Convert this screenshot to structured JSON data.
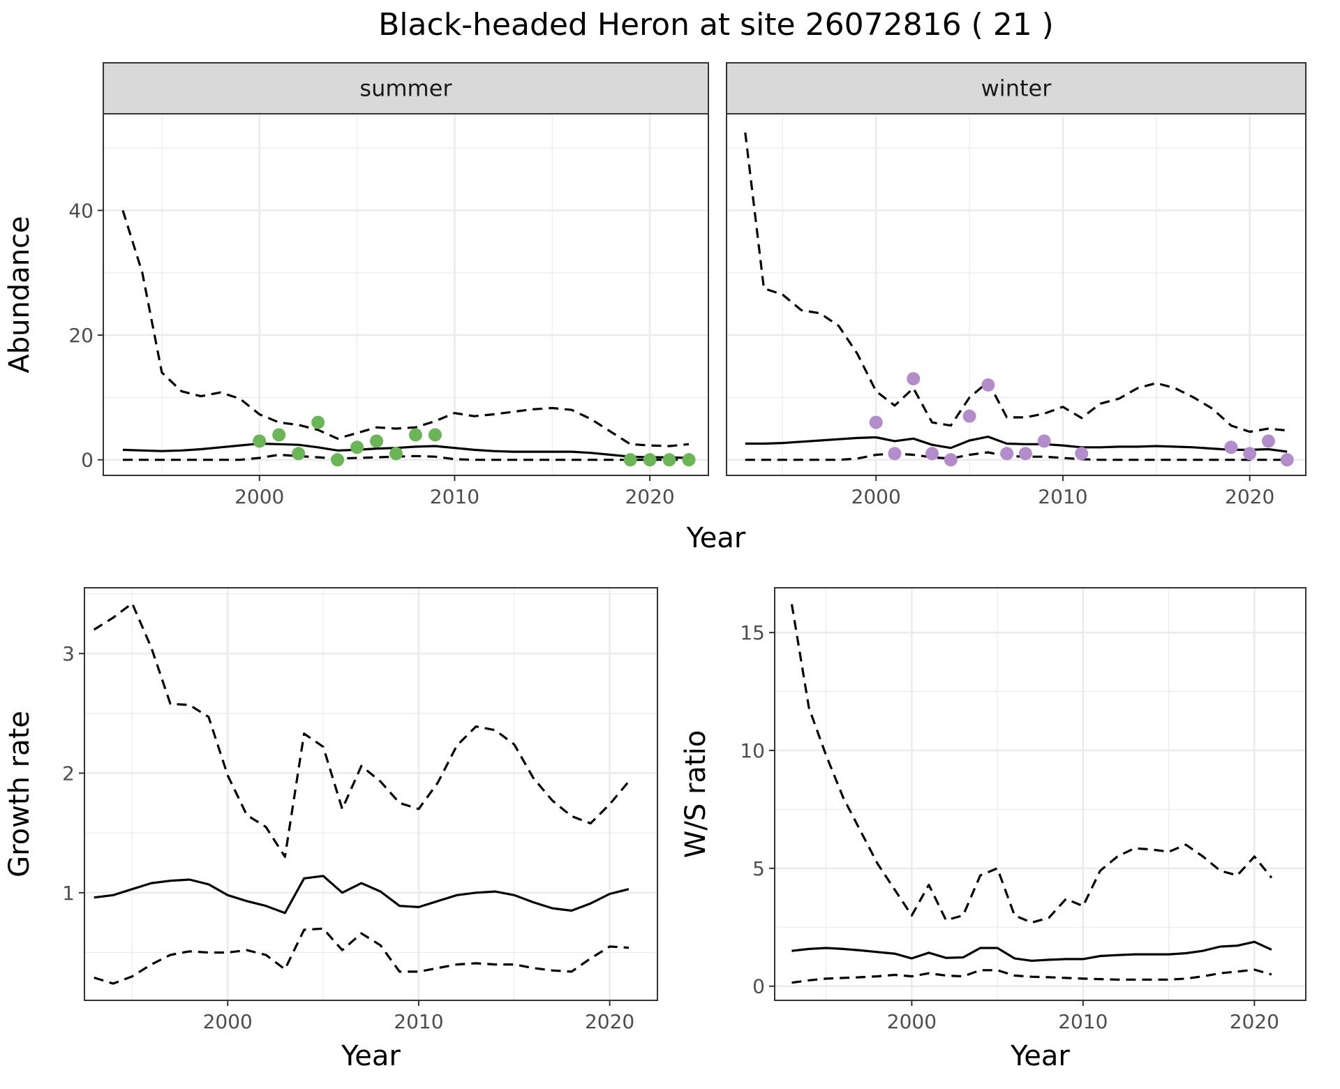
{
  "title": "Black-headed Heron at site 26072816 ( 21 )",
  "chart_data": [
    {
      "type": "line",
      "panel": "summer",
      "strip_label": "summer",
      "xlabel": "Year",
      "ylabel": "Abundance",
      "xlim": [
        1992,
        2023
      ],
      "ylim": [
        -2.5,
        55.5
      ],
      "x_ticks": [
        2000,
        2010,
        2020
      ],
      "y_ticks": [
        0,
        20,
        40
      ],
      "point_color": "#6ab657",
      "series": [
        {
          "style": "dashed",
          "x": [
            1993,
            1994,
            1995,
            1996,
            1997,
            1998,
            1999,
            2000,
            2001,
            2002,
            2003,
            2004,
            2005,
            2006,
            2007,
            2008,
            2009,
            2010,
            2011,
            2012,
            2013,
            2014,
            2015,
            2016,
            2017,
            2018,
            2019,
            2020,
            2021,
            2022
          ],
          "values": [
            40,
            30,
            14,
            11,
            10.2,
            10.8,
            9.8,
            7.3,
            6,
            5.6,
            4.8,
            3.4,
            4.3,
            5.2,
            5,
            5.2,
            6.2,
            7.5,
            7,
            7.3,
            7.7,
            8.1,
            8.3,
            8,
            6.5,
            4.5,
            2.5,
            2.3,
            2.2,
            2.5
          ]
        },
        {
          "style": "solid",
          "x": [
            1993,
            1994,
            1995,
            1996,
            1997,
            1998,
            1999,
            2000,
            2001,
            2002,
            2003,
            2004,
            2005,
            2006,
            2007,
            2008,
            2009,
            2010,
            2011,
            2012,
            2013,
            2014,
            2015,
            2016,
            2017,
            2018,
            2019,
            2020,
            2021,
            2022
          ],
          "values": [
            1.6,
            1.5,
            1.4,
            1.5,
            1.7,
            2,
            2.3,
            2.6,
            2.5,
            2.4,
            2,
            1.5,
            1.6,
            1.8,
            1.9,
            2.1,
            2.2,
            1.9,
            1.6,
            1.4,
            1.3,
            1.3,
            1.3,
            1.3,
            1.1,
            0.8,
            0.5,
            0.4,
            0.4,
            0.3
          ]
        },
        {
          "style": "dashed",
          "x": [
            1993,
            1994,
            1995,
            1996,
            1997,
            1998,
            1999,
            2000,
            2001,
            2002,
            2003,
            2004,
            2005,
            2006,
            2007,
            2008,
            2009,
            2010,
            2011,
            2012,
            2013,
            2014,
            2015,
            2016,
            2017,
            2018,
            2019,
            2020,
            2021,
            2022
          ],
          "values": [
            0,
            0,
            0,
            0,
            0,
            0,
            0,
            0.3,
            0.8,
            0.6,
            0.4,
            0.2,
            0.3,
            0.4,
            0.5,
            0.6,
            0.5,
            0.1,
            0,
            0,
            0,
            0,
            0,
            0,
            0,
            0,
            0,
            0,
            0,
            0
          ]
        }
      ],
      "points": {
        "x": [
          2000,
          2001,
          2002,
          2003,
          2004,
          2005,
          2006,
          2007,
          2008,
          2009,
          2019,
          2020,
          2021,
          2022
        ],
        "values": [
          3,
          4,
          1,
          6,
          0,
          2,
          3,
          1,
          4,
          4,
          0,
          0,
          0,
          0
        ]
      }
    },
    {
      "type": "line",
      "panel": "winter",
      "strip_label": "winter",
      "xlabel": "Year",
      "ylabel": "Abundance",
      "xlim": [
        1992,
        2023
      ],
      "ylim": [
        -2.5,
        55.5
      ],
      "x_ticks": [
        2000,
        2010,
        2020
      ],
      "y_ticks": [
        0,
        20,
        40
      ],
      "point_color": "#b38dcb",
      "series": [
        {
          "style": "dashed",
          "x": [
            1993,
            1994,
            1995,
            1996,
            1997,
            1998,
            1999,
            2000,
            2001,
            2002,
            2003,
            2004,
            2005,
            2006,
            2007,
            2008,
            2009,
            2010,
            2011,
            2012,
            2013,
            2014,
            2015,
            2016,
            2017,
            2018,
            2019,
            2020,
            2021,
            2022
          ],
          "values": [
            52.5,
            27.5,
            26.5,
            24,
            23.5,
            21.5,
            17,
            11,
            8.7,
            11.5,
            6,
            5.5,
            10,
            12.5,
            6.8,
            6.8,
            7.4,
            8.5,
            6.7,
            9,
            9.8,
            11.5,
            12.3,
            11.5,
            10,
            8.2,
            5.5,
            4.5,
            5,
            4.7
          ]
        },
        {
          "style": "solid",
          "x": [
            1993,
            1994,
            1995,
            1996,
            1997,
            1998,
            1999,
            2000,
            2001,
            2002,
            2003,
            2004,
            2005,
            2006,
            2007,
            2008,
            2009,
            2010,
            2011,
            2012,
            2013,
            2014,
            2015,
            2016,
            2017,
            2018,
            2019,
            2020,
            2021,
            2022
          ],
          "values": [
            2.6,
            2.6,
            2.7,
            2.9,
            3.1,
            3.3,
            3.5,
            3.6,
            3,
            3.4,
            2.4,
            1.9,
            3.1,
            3.7,
            2.6,
            2.5,
            2.5,
            2.3,
            2,
            2,
            2.1,
            2.1,
            2.2,
            2.1,
            2,
            1.8,
            1.6,
            1.6,
            1.7,
            1.3
          ]
        },
        {
          "style": "dashed",
          "x": [
            1993,
            1994,
            1995,
            1996,
            1997,
            1998,
            1999,
            2000,
            2001,
            2002,
            2003,
            2004,
            2005,
            2006,
            2007,
            2008,
            2009,
            2010,
            2011,
            2012,
            2013,
            2014,
            2015,
            2016,
            2017,
            2018,
            2019,
            2020,
            2021,
            2022
          ],
          "values": [
            0,
            0,
            0,
            0,
            0,
            0,
            0.2,
            0.8,
            1,
            0.8,
            0.4,
            0.2,
            0.8,
            1.2,
            0.6,
            0.5,
            0.5,
            0.3,
            0.1,
            0,
            0,
            0,
            0,
            0,
            0,
            0,
            0,
            0,
            0,
            0
          ]
        }
      ],
      "points": {
        "x": [
          2000,
          2001,
          2002,
          2003,
          2004,
          2005,
          2006,
          2007,
          2008,
          2009,
          2011,
          2019,
          2020,
          2021,
          2022
        ],
        "values": [
          6,
          1,
          13,
          1,
          0,
          7,
          12,
          1,
          1,
          3,
          1,
          2,
          1,
          3,
          0
        ]
      }
    },
    {
      "type": "line",
      "panel": "growth",
      "xlabel": "Year",
      "ylabel": "Growth rate",
      "xlim": [
        1992.5,
        2022.5
      ],
      "ylim": [
        0.1,
        3.55
      ],
      "x_ticks": [
        2000,
        2010,
        2020
      ],
      "y_ticks": [
        1,
        2,
        3
      ],
      "series": [
        {
          "style": "dashed",
          "x": [
            1993,
            1994,
            1995,
            1996,
            1997,
            1998,
            1999,
            2000,
            2001,
            2002,
            2003,
            2004,
            2005,
            2006,
            2007,
            2008,
            2009,
            2010,
            2011,
            2012,
            2013,
            2014,
            2015,
            2016,
            2017,
            2018,
            2019,
            2020,
            2021
          ],
          "values": [
            3.2,
            3.3,
            3.42,
            3.05,
            2.58,
            2.57,
            2.47,
            1.98,
            1.65,
            1.55,
            1.3,
            2.33,
            2.22,
            1.7,
            2.06,
            1.93,
            1.75,
            1.7,
            1.92,
            2.23,
            2.39,
            2.36,
            2.24,
            1.96,
            1.77,
            1.64,
            1.58,
            1.74,
            1.93
          ]
        },
        {
          "style": "solid",
          "x": [
            1993,
            1994,
            1995,
            1996,
            1997,
            1998,
            1999,
            2000,
            2001,
            2002,
            2003,
            2004,
            2005,
            2006,
            2007,
            2008,
            2009,
            2010,
            2011,
            2012,
            2013,
            2014,
            2015,
            2016,
            2017,
            2018,
            2019,
            2020,
            2021
          ],
          "values": [
            0.96,
            0.98,
            1.03,
            1.08,
            1.1,
            1.11,
            1.07,
            0.98,
            0.93,
            0.89,
            0.83,
            1.12,
            1.14,
            1.0,
            1.08,
            1.01,
            0.89,
            0.88,
            0.93,
            0.98,
            1.0,
            1.01,
            0.98,
            0.92,
            0.87,
            0.85,
            0.91,
            0.99,
            1.03
          ]
        },
        {
          "style": "dashed",
          "x": [
            1993,
            1994,
            1995,
            1996,
            1997,
            1998,
            1999,
            2000,
            2001,
            2002,
            2003,
            2004,
            2005,
            2006,
            2007,
            2008,
            2009,
            2010,
            2011,
            2012,
            2013,
            2014,
            2015,
            2016,
            2017,
            2018,
            2019,
            2020,
            2021
          ],
          "values": [
            0.29,
            0.24,
            0.3,
            0.4,
            0.48,
            0.51,
            0.5,
            0.5,
            0.52,
            0.48,
            0.36,
            0.69,
            0.7,
            0.52,
            0.66,
            0.56,
            0.34,
            0.34,
            0.37,
            0.4,
            0.41,
            0.4,
            0.4,
            0.37,
            0.35,
            0.34,
            0.45,
            0.55,
            0.54
          ]
        }
      ]
    },
    {
      "type": "line",
      "panel": "ws-ratio",
      "xlabel": "Year",
      "ylabel": "W/S ratio",
      "xlim": [
        1992,
        2023
      ],
      "ylim": [
        -0.6,
        16.9
      ],
      "x_ticks": [
        2000,
        2010,
        2020
      ],
      "y_ticks": [
        0,
        5,
        10,
        15
      ],
      "series": [
        {
          "style": "dashed",
          "x": [
            1993,
            1994,
            1995,
            1996,
            1997,
            1998,
            1999,
            2000,
            2001,
            2002,
            2003,
            2004,
            2005,
            2006,
            2007,
            2008,
            2009,
            2010,
            2011,
            2012,
            2013,
            2014,
            2015,
            2016,
            2017,
            2018,
            2019,
            2020,
            2021
          ],
          "values": [
            16.2,
            11.8,
            9.8,
            8.0,
            6.6,
            5.2,
            4.1,
            3.0,
            4.3,
            2.8,
            3.0,
            4.7,
            5.0,
            3.0,
            2.7,
            2.9,
            3.7,
            3.4,
            4.9,
            5.5,
            5.85,
            5.8,
            5.7,
            6.0,
            5.5,
            4.9,
            4.7,
            5.5,
            4.6
          ]
        },
        {
          "style": "solid",
          "x": [
            1993,
            1994,
            1995,
            1996,
            1997,
            1998,
            1999,
            2000,
            2001,
            2002,
            2003,
            2004,
            2005,
            2006,
            2007,
            2008,
            2009,
            2010,
            2011,
            2012,
            2013,
            2014,
            2015,
            2016,
            2017,
            2018,
            2019,
            2020,
            2021
          ],
          "values": [
            1.5,
            1.58,
            1.62,
            1.58,
            1.52,
            1.45,
            1.38,
            1.18,
            1.42,
            1.2,
            1.22,
            1.62,
            1.62,
            1.18,
            1.08,
            1.12,
            1.15,
            1.15,
            1.28,
            1.32,
            1.35,
            1.35,
            1.35,
            1.4,
            1.5,
            1.68,
            1.72,
            1.88,
            1.55
          ]
        },
        {
          "style": "dashed",
          "x": [
            1993,
            1994,
            1995,
            1996,
            1997,
            1998,
            1999,
            2000,
            2001,
            2002,
            2003,
            2004,
            2005,
            2006,
            2007,
            2008,
            2009,
            2010,
            2011,
            2012,
            2013,
            2014,
            2015,
            2016,
            2017,
            2018,
            2019,
            2020,
            2021
          ],
          "values": [
            0.15,
            0.25,
            0.32,
            0.35,
            0.38,
            0.42,
            0.48,
            0.42,
            0.55,
            0.45,
            0.42,
            0.68,
            0.68,
            0.45,
            0.4,
            0.38,
            0.35,
            0.32,
            0.3,
            0.28,
            0.28,
            0.28,
            0.28,
            0.32,
            0.42,
            0.55,
            0.62,
            0.7,
            0.5
          ]
        }
      ]
    }
  ]
}
